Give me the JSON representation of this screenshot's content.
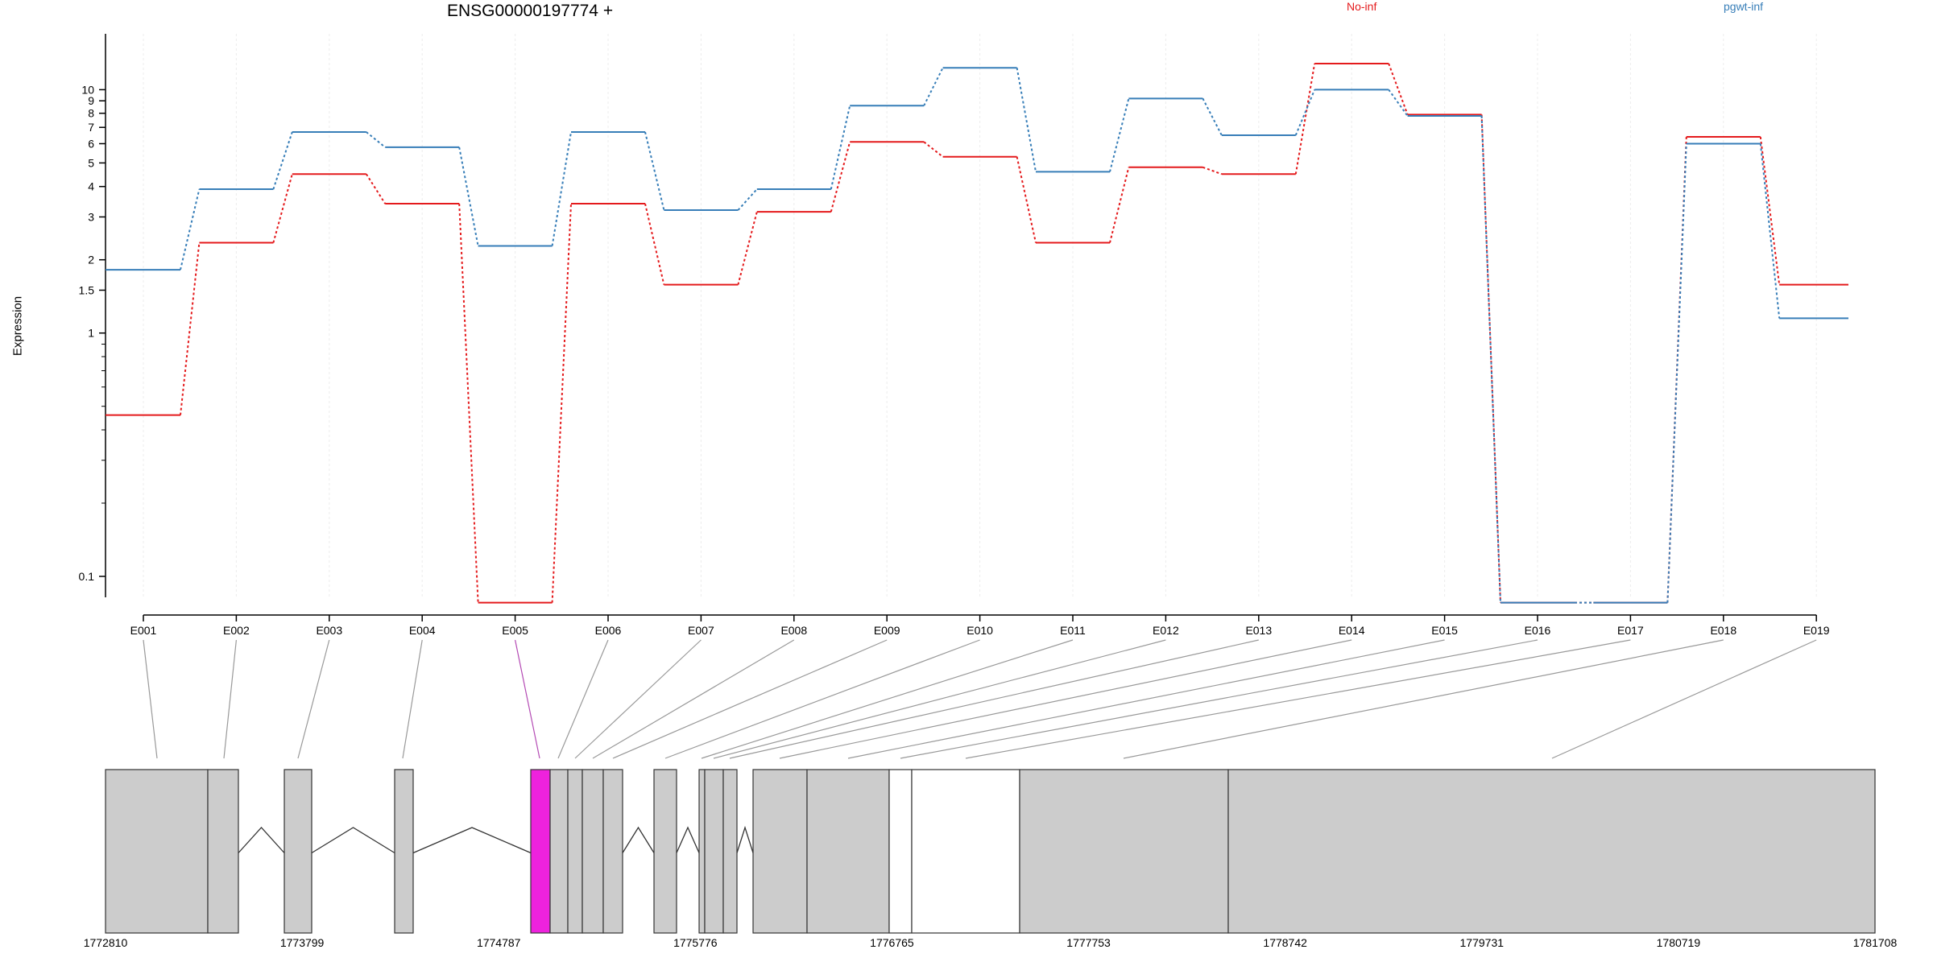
{
  "title": "ENSG00000197774 +",
  "ylabel": "Expression",
  "colors": {
    "series1": "#e41a1c",
    "series2": "#377eb8",
    "highlight": "#ee22dd",
    "exon": "#cccccc"
  },
  "chart_data": {
    "type": "line",
    "title": "ENSG00000197774 +",
    "xlabel": "",
    "ylabel": "Expression",
    "yscale": "log",
    "ylim": [
      0.07,
      14
    ],
    "yticks": [
      "0.1",
      "1",
      "1.5",
      "2",
      "3",
      "4",
      "5",
      "6",
      "7",
      "8",
      "9",
      "10"
    ],
    "grid": true,
    "legend_position": "top-right",
    "categories": [
      "E001",
      "E002",
      "E003",
      "E004",
      "E005",
      "E006",
      "E007",
      "E008",
      "E009",
      "E010",
      "E011",
      "E012",
      "E013",
      "E014",
      "E015",
      "E016",
      "E017",
      "E018",
      "E019"
    ],
    "series": [
      {
        "name": "No-inf",
        "color": "#e41a1c",
        "values": [
          0.46,
          2.35,
          4.5,
          3.4,
          0.078,
          3.4,
          1.58,
          3.15,
          6.1,
          5.3,
          2.35,
          4.8,
          4.5,
          12.8,
          7.9,
          0.078,
          0.078,
          6.4,
          1.58
        ]
      },
      {
        "name": "pgwt-inf",
        "color": "#377eb8",
        "values": [
          1.82,
          3.9,
          6.7,
          5.8,
          2.28,
          6.7,
          3.2,
          3.9,
          8.6,
          12.3,
          4.6,
          9.2,
          6.5,
          10.0,
          7.8,
          0.078,
          0.078,
          6.0,
          1.15
        ]
      }
    ],
    "highlight_exon": "E005",
    "genome_ticks": [
      "1772810",
      "1773799",
      "1774787",
      "1775776",
      "1776765",
      "1777753",
      "1778742",
      "1779731",
      "1780719",
      "1781708"
    ]
  }
}
